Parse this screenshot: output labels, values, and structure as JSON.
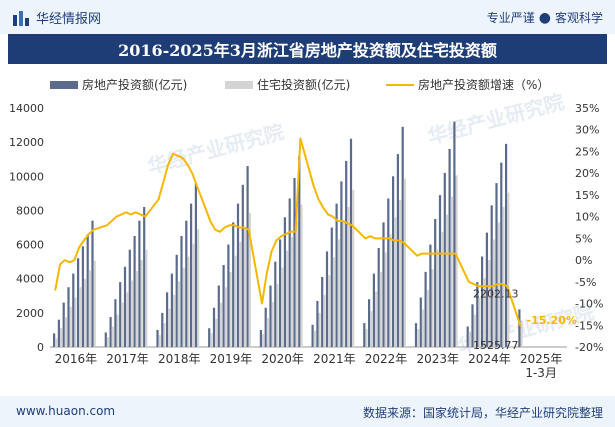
{
  "header": {
    "brand_name": "华经情报网",
    "tagline_left": "专业严谨",
    "tagline_sep": "●",
    "tagline_right": "客观科学"
  },
  "footer": {
    "url": "www.huaon.com",
    "source": "数据来源：国家统计局，华经产业研究院整理"
  },
  "watermark": "华经产业研究院",
  "colors": {
    "bar_total": "#5b6b8c",
    "bar_residential": "#d4d4d4",
    "line": "#f5b700",
    "title_bg": "#1e3d77",
    "label_highlight": "#f5b700"
  },
  "chart_data": {
    "type": "bar+line",
    "title": "2016-2025年3月浙江省房地产投资额及住宅投资额",
    "legend": [
      "房地产投资额(亿元)",
      "住宅投资额(亿元)",
      "房地产投资额增速（%）"
    ],
    "legend_position": "top",
    "y_left": {
      "ticks": [
        0,
        2000,
        4000,
        6000,
        8000,
        10000,
        12000,
        14000
      ],
      "range": [
        0,
        14000
      ]
    },
    "y_right": {
      "ticks": [
        "35%",
        "30%",
        "25%",
        "20%",
        "15%",
        "10%",
        "5%",
        "0%",
        "-5%",
        "-10%",
        "-15%",
        "-20%"
      ],
      "range": [
        -20,
        35
      ]
    },
    "x_labels": [
      "2016年",
      "2017年",
      "2018年",
      "2019年",
      "2020年",
      "2021年",
      "2022年",
      "2023年",
      "2024年",
      "2025年\n1-3月"
    ],
    "series": [
      {
        "name": "房地产投资额(亿元)",
        "values": [
          [
            800,
            1600,
            2600,
            3500,
            4300,
            5200,
            5900,
            6600,
            7400
          ],
          [
            850,
            1750,
            2800,
            3800,
            4700,
            5700,
            6500,
            7400,
            8200
          ],
          [
            1000,
            2000,
            3200,
            4300,
            5400,
            6500,
            7400,
            8400,
            9600
          ],
          [
            1100,
            2300,
            3600,
            4800,
            6000,
            7300,
            8400,
            9500,
            10600
          ],
          [
            1000,
            2300,
            3600,
            5000,
            6300,
            7600,
            8700,
            9900,
            11200
          ],
          [
            1300,
            2700,
            4100,
            5600,
            7000,
            8400,
            9700,
            10900,
            12200
          ],
          [
            1400,
            2800,
            4300,
            5800,
            7300,
            8700,
            10000,
            11300,
            12900
          ],
          [
            1400,
            2900,
            4400,
            6000,
            7500,
            8900,
            10200,
            11600,
            13200
          ],
          [
            1200,
            2500,
            3800,
            5300,
            6700,
            8300,
            9600,
            10800,
            11900
          ],
          [
            2202.13
          ]
        ]
      },
      {
        "name": "住宅投资额(亿元)",
        "values": [
          [
            500,
            1100,
            1750,
            2350,
            2900,
            3500,
            4000,
            4500,
            5050
          ],
          [
            580,
            1200,
            1900,
            2600,
            3200,
            3900,
            4450,
            5100,
            5700
          ],
          [
            700,
            1400,
            2250,
            3050,
            3850,
            4650,
            5300,
            6050,
            6900
          ],
          [
            800,
            1650,
            2600,
            3500,
            4400,
            5350,
            6150,
            7000,
            7850
          ],
          [
            750,
            1700,
            2650,
            3700,
            4650,
            5650,
            6450,
            7350,
            8350
          ],
          [
            950,
            2000,
            3050,
            4200,
            5250,
            6300,
            7300,
            8200,
            9200
          ],
          [
            1050,
            2100,
            3250,
            4400,
            5550,
            6600,
            7600,
            8600,
            9850
          ],
          [
            1050,
            2200,
            3350,
            4550,
            5700,
            6750,
            7750,
            8800,
            10050
          ],
          [
            900,
            1900,
            2900,
            4050,
            5100,
            6300,
            7300,
            8200,
            9050
          ],
          [
            1525.77
          ]
        ]
      },
      {
        "name": "房地产投资额增速（%）",
        "values": [
          -7,
          -1,
          0,
          -0.5,
          0,
          3,
          4.5,
          6,
          7,
          8,
          9,
          10,
          10.5,
          11,
          10.5,
          11,
          10.5,
          10,
          14,
          18,
          22,
          24.5,
          24,
          23.5,
          22,
          20,
          17,
          9,
          7,
          6.5,
          7.5,
          8,
          8,
          7.5,
          7.5,
          7,
          -10,
          -3,
          2,
          4.5,
          5.5,
          6,
          6.5,
          6.5,
          28,
          17,
          14,
          12,
          10.5,
          10,
          9,
          9,
          8.5,
          8,
          5,
          5.5,
          5,
          5,
          5,
          5,
          4.5,
          4.5,
          4,
          1,
          1.5,
          1.5,
          1.5,
          1.5,
          1.5,
          1.5,
          1.5,
          1.5,
          -5,
          -5.5,
          -6,
          -6,
          -6,
          -6,
          -5.5,
          -5.5,
          -6,
          -15.2
        ]
      }
    ],
    "annotations": [
      "2202.13",
      "1525.77",
      "-15.20%"
    ]
  }
}
